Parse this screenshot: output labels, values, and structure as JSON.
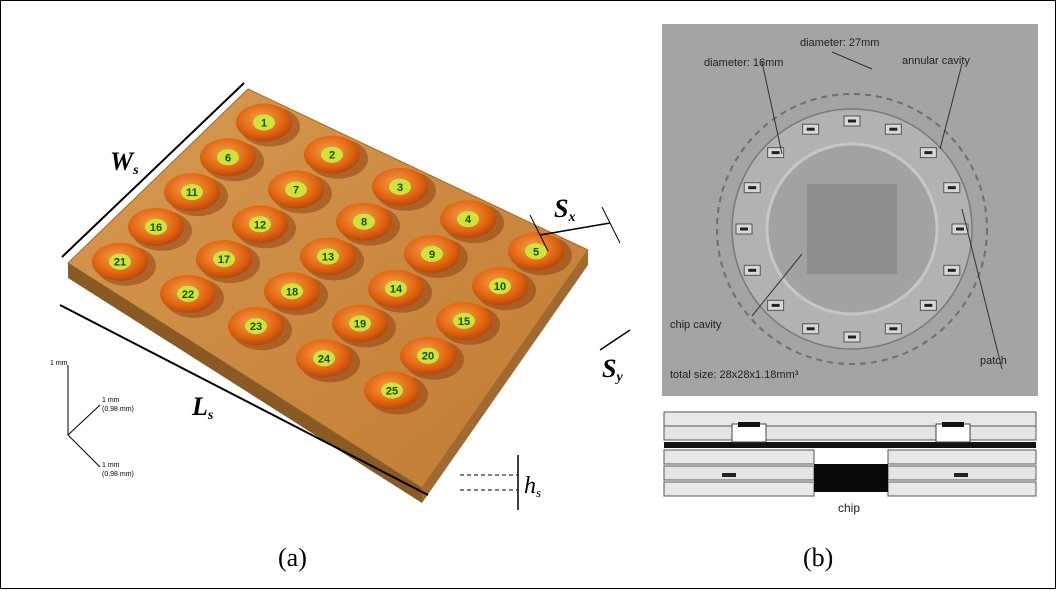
{
  "panel_a": {
    "labels": {
      "width": "W",
      "width_sub": "s",
      "length": "L",
      "length_sub": "s",
      "sx": "S",
      "sx_sub": "x",
      "sy": "S",
      "sy_sub": "y",
      "h": "h",
      "h_sub": "s"
    },
    "axes": {
      "z": "1 mm",
      "y1": "1 mm",
      "y2": "(0.98 mm)",
      "x1": "1 mm",
      "x2": "(0.98 mm)"
    },
    "cell_numbers": [
      "1",
      "2",
      "3",
      "4",
      "5",
      "6",
      "7",
      "8",
      "9",
      "10",
      "11",
      "12",
      "13",
      "14",
      "15",
      "16",
      "17",
      "18",
      "19",
      "20",
      "21",
      "22",
      "23",
      "24",
      "25"
    ],
    "caption": "(a)"
  },
  "panel_b": {
    "labels": {
      "diameter_outer": "diameter: 27mm",
      "diameter_inner": "diameter: 16mm",
      "annular_cavity": "annular cavity",
      "chip_cavity": "chip cavity",
      "total_size": "total size: 28x28x1.18mm³",
      "patch": "patch",
      "chip": "chip"
    },
    "caption": "(b)"
  },
  "colors": {
    "substrate": "#c9853a",
    "patch": "#e06a12",
    "number_fill": "#cfe43a",
    "pcb_gray": "#9a9a9a"
  }
}
